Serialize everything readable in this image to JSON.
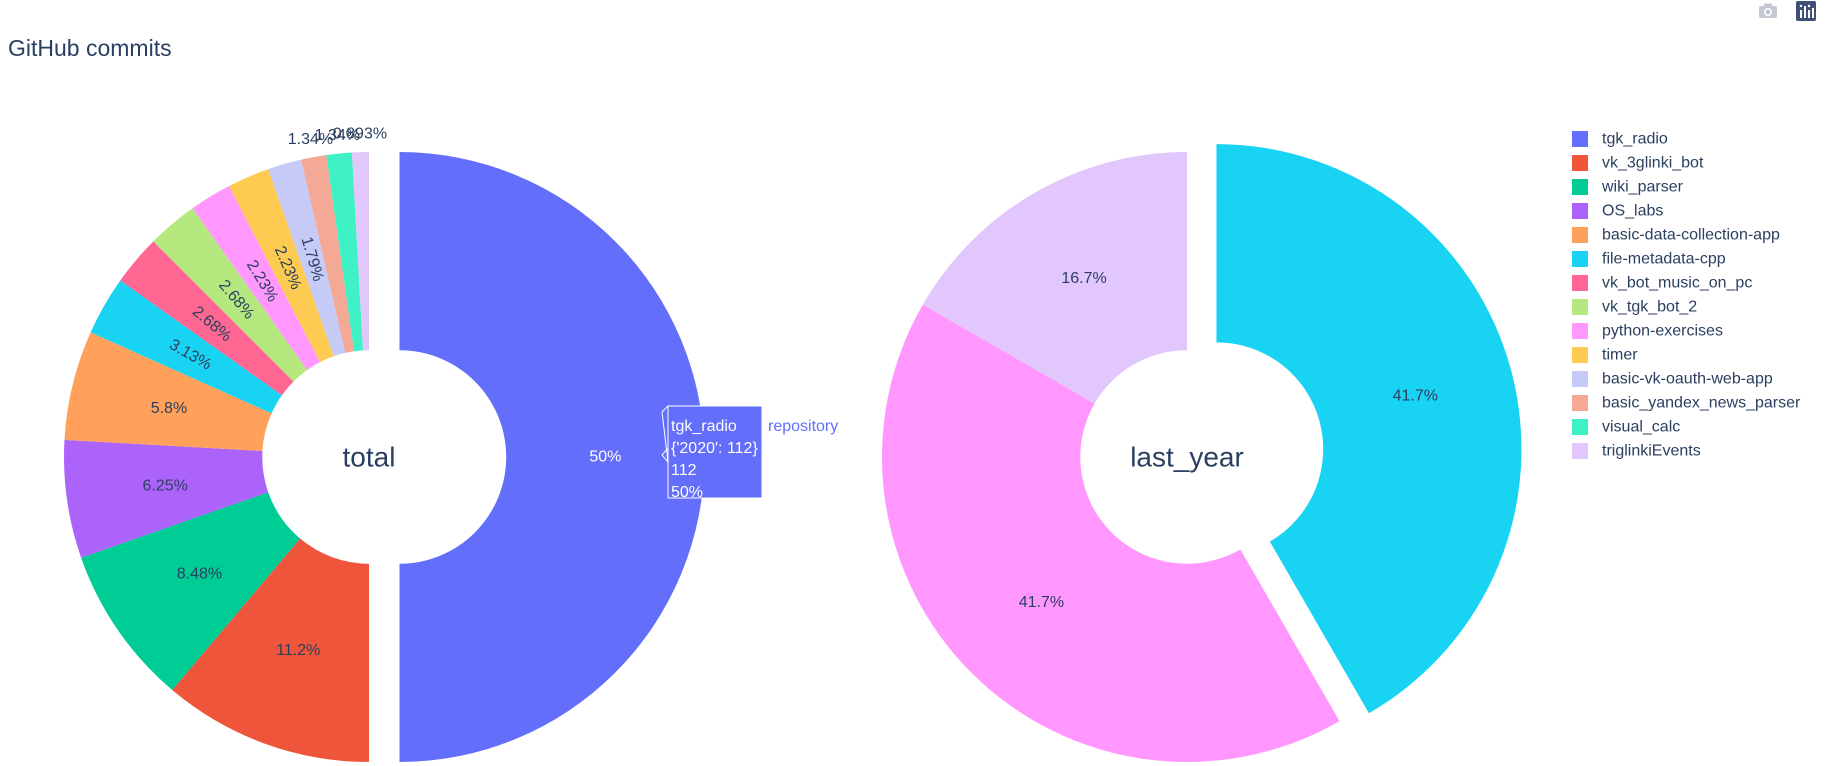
{
  "modebar": {
    "icons": [
      "camera-icon",
      "plotly-logo-icon"
    ]
  },
  "chart_data": {
    "type": "pie",
    "title": "GitHub commits",
    "hole": 0.35,
    "legend_placement": "top-right",
    "colors": [
      "#636efa",
      "#ef553b",
      "#00cc96",
      "#ab63fa",
      "#ffa15a",
      "#19d3f3",
      "#ff6692",
      "#b6e880",
      "#ff97ff",
      "#fecb52",
      "#c6caf6",
      "#f4a896",
      "#3ef2c6",
      "#e1c7fc"
    ],
    "legend": [
      "tgk_radio",
      "vk_3glinki_bot",
      "wiki_parser",
      "OS_labs",
      "basic-data-collection-app",
      "file-metadata-cpp",
      "vk_bot_music_on_pc",
      "vk_tgk_bot_2",
      "python-exercises",
      "timer",
      "basic-vk-oauth-web-app",
      "basic_yandex_news_parser",
      "visual_calc",
      "triglinkiEvents"
    ],
    "pies": [
      {
        "name": "total",
        "labels": [
          "tgk_radio",
          "vk_3glinki_bot",
          "wiki_parser",
          "OS_labs",
          "basic-data-collection-app",
          "file-metadata-cpp",
          "vk_bot_music_on_pc",
          "vk_tgk_bot_2",
          "python-exercises",
          "timer",
          "basic-vk-oauth-web-app",
          "basic_yandex_news_parser",
          "visual_calc",
          "triglinkiEvents"
        ],
        "values": [
          112,
          25,
          19,
          14,
          13,
          7,
          6,
          6,
          5,
          5,
          4,
          3,
          3,
          2
        ],
        "text": [
          "50%",
          "11.2%",
          "8.48%",
          "6.25%",
          "5.8%",
          "3.13%",
          "2.68%",
          "2.68%",
          "2.23%",
          "2.23%",
          "1.79%",
          "1.34%",
          "1.34%",
          "0.893%"
        ],
        "pull": [
          0.1,
          0,
          0,
          0,
          0,
          0,
          0,
          0,
          0,
          0,
          0,
          0,
          0,
          0
        ]
      },
      {
        "name": "last_year",
        "labels": [
          "file-metadata-cpp",
          "python-exercises",
          "triglinkiEvents"
        ],
        "values": [
          5,
          5,
          2
        ],
        "text": [
          "41.7%",
          "41.7%",
          "16.7%"
        ],
        "pull": [
          0.1,
          0,
          0
        ]
      }
    ],
    "hover": {
      "lines": [
        "tgk_radio",
        "{'2020': 112}",
        "112",
        "50%"
      ],
      "trace_label": "repository"
    }
  }
}
